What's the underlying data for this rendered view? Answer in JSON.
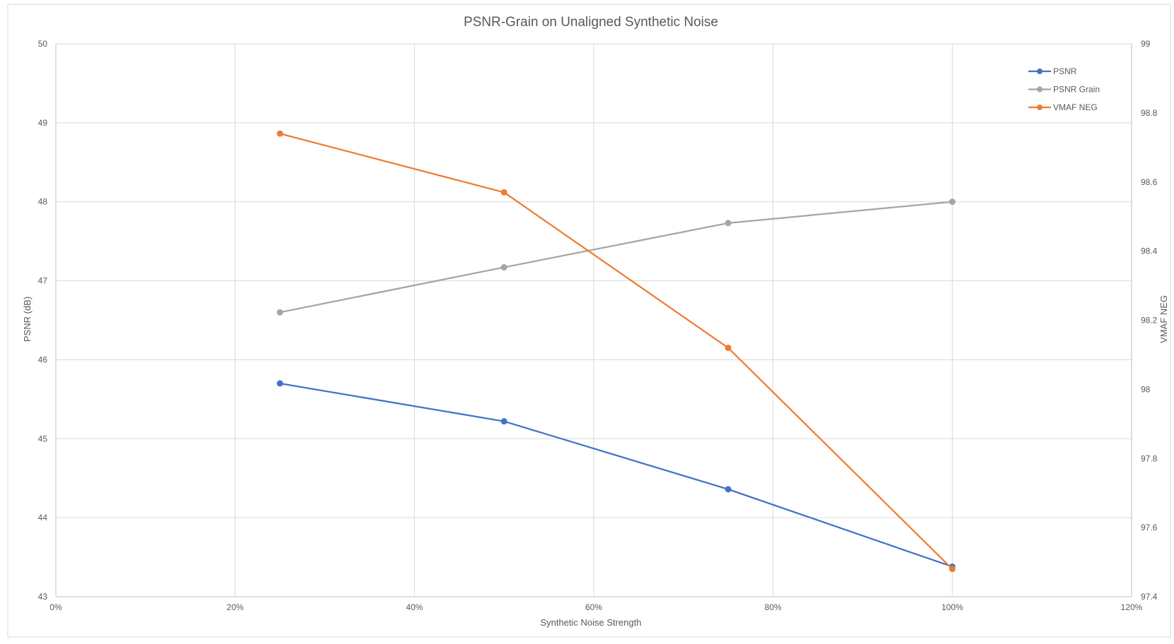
{
  "chart_data": {
    "type": "line",
    "title": "PSNR-Grain on Unaligned Synthetic Noise",
    "xlabel": "Synthetic Noise Strength",
    "ylabel": "PSNR (dB)",
    "y2label": "VMAF NEG",
    "x": [
      0.25,
      0.5,
      0.75,
      1.0
    ],
    "xlim": [
      0,
      1.2
    ],
    "x_ticks": [
      0,
      0.2,
      0.4,
      0.6,
      0.8,
      1.0,
      1.2
    ],
    "x_tick_labels": [
      "0%",
      "20%",
      "40%",
      "60%",
      "80%",
      "100%",
      "120%"
    ],
    "ylim": [
      43,
      50
    ],
    "y_ticks": [
      43,
      44,
      45,
      46,
      47,
      48,
      49,
      50
    ],
    "y_tick_labels": [
      "43",
      "44",
      "45",
      "46",
      "47",
      "48",
      "49",
      "50"
    ],
    "y2lim": [
      97.4,
      99
    ],
    "y2_ticks": [
      97.4,
      97.6,
      97.8,
      98,
      98.2,
      98.4,
      98.6,
      98.8,
      99
    ],
    "y2_tick_labels": [
      "97.4",
      "97.6",
      "97.8",
      "98",
      "98.2",
      "98.4",
      "98.6",
      "98.8",
      "99"
    ],
    "grid": true,
    "legend_position": "top-right",
    "series": [
      {
        "name": "PSNR",
        "axis": "left",
        "color": "#4472c4",
        "values": [
          45.7,
          45.22,
          44.36,
          43.38
        ]
      },
      {
        "name": "PSNR Grain",
        "axis": "left",
        "color": "#a5a5a5",
        "values": [
          46.6,
          47.17,
          47.73,
          48.0
        ]
      },
      {
        "name": "VMAF NEG",
        "axis": "right",
        "color": "#ed7d31",
        "values": [
          98.74,
          98.57,
          98.12,
          97.48
        ]
      }
    ]
  }
}
